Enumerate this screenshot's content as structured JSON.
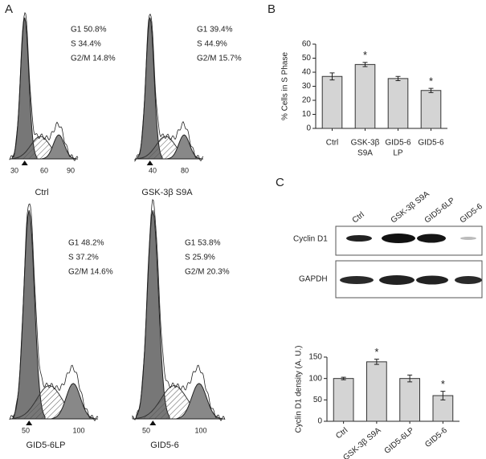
{
  "panels": {
    "a": "A",
    "b": "B",
    "c": "C"
  },
  "flow": [
    {
      "label": "Ctrl",
      "stats": [
        "G1 50.8%",
        "S 34.4%",
        "G2/M 14.8%"
      ],
      "ticks": [
        "30",
        "60",
        "90"
      ]
    },
    {
      "label": "GSK-3β S9A",
      "stats": [
        "G1 39.4%",
        "S 44.9%",
        "G2/M 15.7%"
      ],
      "ticks": [
        "40",
        "80"
      ]
    },
    {
      "label": "GID5-6LP",
      "stats": [
        "G1 48.2%",
        "S 37.2%",
        "G2/M 14.6%"
      ],
      "ticks": [
        "50",
        "100"
      ]
    },
    {
      "label": "GID5-6",
      "stats": [
        "G1 53.8%",
        "S 25.9%",
        "G2/M 20.3%"
      ],
      "ticks": [
        "50",
        "100"
      ]
    }
  ],
  "blot": {
    "lanes": [
      "Ctrl",
      "GSK-3β S9A",
      "GID5-6LP",
      "GID5-6"
    ],
    "rows": [
      "Cyclin D1",
      "GAPDH"
    ]
  },
  "chart_data": [
    {
      "type": "bar",
      "y_label": "% Cells in S Phase",
      "categories": [
        [
          "Ctrl"
        ],
        [
          "GSK-3β",
          "S9A"
        ],
        [
          "GID5-6",
          "LP"
        ],
        [
          "GID5-6"
        ]
      ],
      "values": [
        37,
        45.5,
        35.5,
        27
      ],
      "errors": [
        2.5,
        1.5,
        1.5,
        1.5
      ],
      "significance": [
        null,
        "*",
        null,
        "*"
      ],
      "color": "#d4d4d4",
      "ylim": [
        0,
        60
      ],
      "yticks": [
        0,
        10,
        20,
        30,
        40,
        50,
        60
      ]
    },
    {
      "type": "bar",
      "y_label": "Cyclin D1 density (A. U.)",
      "categories": [
        [
          "Ctrl"
        ],
        [
          "GSK-3β S9A"
        ],
        [
          "GID5-6LP"
        ],
        [
          "GID5-6"
        ]
      ],
      "values": [
        100,
        139,
        100,
        60
      ],
      "errors": [
        3,
        6,
        8,
        10
      ],
      "significance": [
        null,
        "*",
        null,
        "*"
      ],
      "color": "#d4d4d4",
      "ylim": [
        0,
        150
      ],
      "yticks": [
        0,
        50,
        100,
        150
      ]
    }
  ]
}
